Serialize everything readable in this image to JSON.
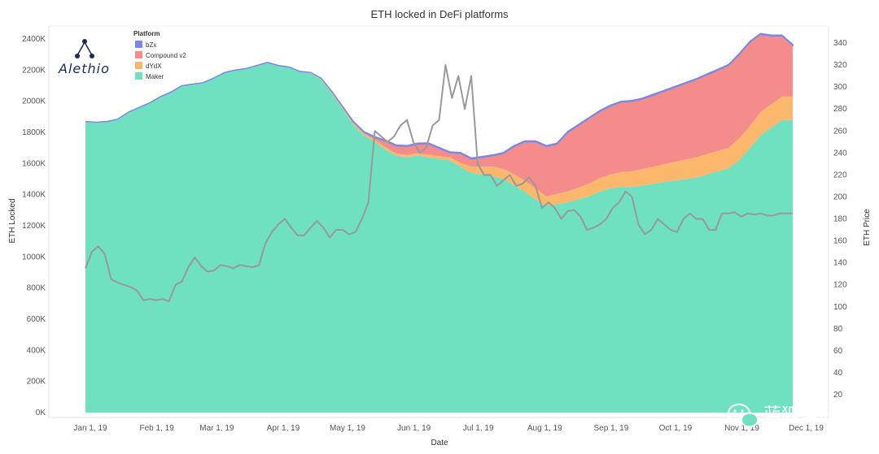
{
  "brand": {
    "name": "Alethio"
  },
  "watermark": {
    "text": "蓝狐笔记"
  },
  "chart_data": {
    "type": "area",
    "title": "ETH locked in DeFi platforms",
    "xlabel": "Date",
    "ylabel": "ETH Locked",
    "y2label": "ETH Price",
    "ylim": [
      0,
      2400
    ],
    "y2lim": [
      0,
      340
    ],
    "y_ticks": [
      0,
      200,
      400,
      600,
      800,
      1000,
      1200,
      1400,
      1600,
      1800,
      2000,
      2200,
      2400
    ],
    "y_tick_labels": [
      "0K",
      "200K",
      "400K",
      "600K",
      "800K",
      "1000K",
      "1200K",
      "1400K",
      "1600K",
      "1800K",
      "2000K",
      "2200K",
      "2400K"
    ],
    "y2_ticks": [
      20,
      40,
      60,
      80,
      100,
      120,
      140,
      160,
      180,
      200,
      220,
      240,
      260,
      280,
      300,
      320,
      340
    ],
    "x_tick_days": [
      0,
      31,
      59,
      90,
      120,
      151,
      181,
      212,
      243,
      273,
      304,
      334
    ],
    "x_tick_labels": [
      "Jan 1, 19",
      "Feb 1, 19",
      "Mar 1, 19",
      "Apr 1, 19",
      "May 1, 19",
      "Jun 1, 19",
      "Jul 1, 19",
      "Aug 1, 19",
      "Sep 1, 19",
      "Oct 1, 19",
      "Nov 1, 19",
      "Dec 1, 19"
    ],
    "legend": {
      "title": "Platform",
      "position": "top-left",
      "items": [
        {
          "name": "bZx",
          "color": "#7b87e8"
        },
        {
          "name": "Compound v2",
          "color": "#f58c8c"
        },
        {
          "name": "dYdX",
          "color": "#fbb76b"
        },
        {
          "name": "Maker",
          "color": "#6fe0c0"
        }
      ]
    },
    "x_days": [
      0,
      5,
      10,
      15,
      20,
      25,
      30,
      35,
      40,
      45,
      50,
      55,
      60,
      65,
      70,
      75,
      80,
      85,
      90,
      95,
      100,
      105,
      110,
      115,
      120,
      125,
      130,
      135,
      140,
      145,
      150,
      155,
      160,
      165,
      170,
      175,
      180,
      185,
      190,
      195,
      200,
      205,
      210,
      215,
      220,
      225,
      230,
      235,
      240,
      245,
      250,
      255,
      260,
      265,
      270,
      275,
      280,
      285,
      290,
      295,
      300,
      305,
      310,
      315,
      320,
      325,
      330
    ],
    "series": [
      {
        "name": "Maker",
        "color": "#6fe0c0",
        "values": [
          1870,
          1865,
          1870,
          1885,
          1930,
          1960,
          1990,
          2030,
          2060,
          2100,
          2110,
          2120,
          2150,
          2185,
          2200,
          2210,
          2230,
          2250,
          2230,
          2220,
          2190,
          2180,
          2140,
          2050,
          1950,
          1850,
          1780,
          1740,
          1690,
          1650,
          1640,
          1650,
          1640,
          1630,
          1620,
          1580,
          1540,
          1530,
          1520,
          1500,
          1460,
          1420,
          1370,
          1330,
          1340,
          1350,
          1370,
          1390,
          1420,
          1440,
          1450,
          1450,
          1460,
          1470,
          1480,
          1490,
          1500,
          1510,
          1530,
          1550,
          1570,
          1620,
          1700,
          1780,
          1830,
          1880,
          1880
        ]
      },
      {
        "name": "dYdX",
        "color": "#fbb76b",
        "values": [
          0,
          0,
          0,
          0,
          0,
          0,
          0,
          0,
          0,
          0,
          0,
          0,
          0,
          0,
          0,
          0,
          0,
          0,
          0,
          0,
          2,
          5,
          8,
          10,
          12,
          12,
          12,
          13,
          14,
          14,
          15,
          16,
          17,
          18,
          20,
          25,
          40,
          50,
          60,
          65,
          70,
          70,
          70,
          60,
          65,
          70,
          75,
          80,
          85,
          90,
          95,
          100,
          105,
          110,
          115,
          120,
          125,
          130,
          130,
          130,
          130,
          140,
          140,
          150,
          150,
          150,
          150
        ]
      },
      {
        "name": "Compound v2",
        "color": "#f58c8c",
        "values": [
          0,
          0,
          0,
          0,
          0,
          0,
          0,
          0,
          0,
          0,
          0,
          0,
          0,
          0,
          0,
          0,
          0,
          0,
          0,
          0,
          0,
          0,
          0,
          2,
          3,
          5,
          8,
          15,
          40,
          50,
          55,
          60,
          70,
          50,
          30,
          60,
          50,
          60,
          70,
          100,
          180,
          250,
          300,
          320,
          320,
          380,
          400,
          420,
          430,
          440,
          450,
          450,
          450,
          460,
          470,
          480,
          490,
          500,
          510,
          520,
          530,
          540,
          540,
          500,
          440,
          390,
          330
        ]
      },
      {
        "name": "bZx",
        "color": "#7b87e8",
        "values": [
          0,
          0,
          0,
          0,
          0,
          0,
          0,
          0,
          0,
          0,
          0,
          0,
          0,
          0,
          0,
          0,
          0,
          0,
          0,
          0,
          0,
          0,
          0,
          1,
          2,
          3,
          4,
          5,
          5,
          5,
          5,
          5,
          5,
          5,
          5,
          5,
          5,
          5,
          5,
          5,
          5,
          5,
          5,
          5,
          5,
          5,
          5,
          5,
          5,
          5,
          5,
          5,
          5,
          5,
          5,
          5,
          5,
          5,
          5,
          5,
          5,
          5,
          5,
          5,
          5,
          5,
          5
        ]
      }
    ],
    "price_series": {
      "name": "ETH Price",
      "color": "#999999",
      "axis": "right",
      "x_days": [
        0,
        3,
        6,
        9,
        12,
        15,
        18,
        21,
        24,
        27,
        30,
        33,
        36,
        39,
        42,
        45,
        48,
        51,
        54,
        57,
        60,
        63,
        66,
        69,
        72,
        75,
        78,
        81,
        84,
        87,
        90,
        93,
        96,
        99,
        102,
        105,
        108,
        111,
        114,
        117,
        120,
        123,
        126,
        129,
        132,
        135,
        138,
        141,
        144,
        147,
        150,
        153,
        156,
        159,
        162,
        165,
        168,
        171,
        174,
        177,
        180,
        183,
        186,
        189,
        192,
        195,
        198,
        201,
        204,
        207,
        210,
        213,
        216,
        219,
        222,
        225,
        228,
        231,
        234,
        237,
        240,
        243,
        246,
        249,
        252,
        255,
        258,
        261,
        264,
        267,
        270,
        273,
        276,
        279,
        282,
        285,
        288,
        291,
        294,
        297,
        300,
        303,
        306,
        309,
        312,
        315,
        318,
        321,
        324,
        327,
        330
      ],
      "values": [
        135,
        150,
        155,
        148,
        125,
        122,
        120,
        118,
        115,
        106,
        107,
        106,
        107,
        105,
        120,
        123,
        136,
        145,
        137,
        132,
        133,
        138,
        137,
        135,
        138,
        137,
        136,
        138,
        158,
        168,
        175,
        180,
        172,
        165,
        165,
        172,
        178,
        172,
        163,
        170,
        170,
        166,
        168,
        180,
        195,
        260,
        255,
        250,
        255,
        265,
        270,
        250,
        240,
        245,
        265,
        270,
        320,
        290,
        310,
        280,
        310,
        230,
        220,
        220,
        210,
        215,
        220,
        210,
        212,
        218,
        210,
        190,
        195,
        190,
        180,
        187,
        188,
        182,
        170,
        172,
        175,
        180,
        190,
        195,
        205,
        200,
        175,
        166,
        170,
        180,
        175,
        170,
        168,
        180,
        185,
        180,
        180,
        170,
        170,
        185,
        185,
        186,
        182,
        185,
        184,
        185,
        183,
        183,
        185,
        185,
        185
      ]
    }
  }
}
